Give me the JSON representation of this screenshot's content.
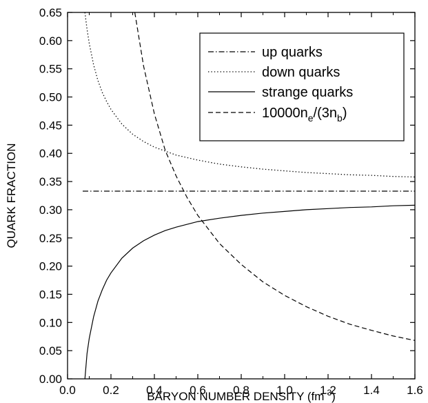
{
  "chart_data": {
    "type": "line",
    "xlabel_main": "BARYON NUMBER DENSITY (fm",
    "xlabel_sup": "-3",
    "xlabel_end": ")",
    "ylabel": "QUARK FRACTION",
    "xlim": [
      0.0,
      1.6
    ],
    "ylim": [
      0.0,
      0.65
    ],
    "xticks": [
      "0.0",
      "0.2",
      "0.4",
      "0.6",
      "0.8",
      "1.0",
      "1.2",
      "1.4",
      "1.6"
    ],
    "yticks": [
      "0.00",
      "0.05",
      "0.10",
      "0.15",
      "0.20",
      "0.25",
      "0.30",
      "0.35",
      "0.40",
      "0.45",
      "0.50",
      "0.55",
      "0.60",
      "0.65"
    ],
    "grid": false,
    "legend_position": "top-right",
    "series": [
      {
        "name": "up quarks",
        "style": "dash-dot",
        "x": [
          0.07,
          0.2,
          0.4,
          0.6,
          0.8,
          1.0,
          1.2,
          1.4,
          1.6
        ],
        "y": [
          0.333,
          0.333,
          0.333,
          0.333,
          0.333,
          0.333,
          0.333,
          0.333,
          0.333
        ]
      },
      {
        "name": "down quarks",
        "style": "dotted",
        "x": [
          0.08,
          0.09,
          0.1,
          0.12,
          0.14,
          0.16,
          0.18,
          0.2,
          0.25,
          0.3,
          0.35,
          0.4,
          0.45,
          0.5,
          0.6,
          0.7,
          0.8,
          0.9,
          1.0,
          1.1,
          1.2,
          1.3,
          1.4,
          1.5,
          1.6
        ],
        "y": [
          0.65,
          0.62,
          0.595,
          0.557,
          0.529,
          0.508,
          0.492,
          0.478,
          0.452,
          0.434,
          0.421,
          0.411,
          0.404,
          0.397,
          0.388,
          0.381,
          0.376,
          0.372,
          0.369,
          0.366,
          0.364,
          0.362,
          0.361,
          0.359,
          0.358
        ]
      },
      {
        "name": "strange quarks",
        "style": "solid",
        "x": [
          0.08,
          0.09,
          0.1,
          0.12,
          0.14,
          0.16,
          0.18,
          0.2,
          0.25,
          0.3,
          0.35,
          0.4,
          0.45,
          0.5,
          0.6,
          0.7,
          0.8,
          0.9,
          1.0,
          1.1,
          1.2,
          1.3,
          1.4,
          1.5,
          1.6
        ],
        "y": [
          0.0,
          0.045,
          0.072,
          0.11,
          0.138,
          0.158,
          0.175,
          0.188,
          0.214,
          0.232,
          0.245,
          0.255,
          0.263,
          0.269,
          0.279,
          0.285,
          0.29,
          0.294,
          0.297,
          0.3,
          0.302,
          0.304,
          0.305,
          0.307,
          0.308
        ]
      },
      {
        "name": "10000n",
        "name_sub1": "e",
        "name_mid": "/(3n",
        "name_sub2": "b",
        "name_end": ")",
        "style": "dashed",
        "x": [
          0.31,
          0.35,
          0.4,
          0.45,
          0.5,
          0.55,
          0.6,
          0.7,
          0.8,
          0.9,
          1.0,
          1.1,
          1.2,
          1.3,
          1.4,
          1.5,
          1.6
        ],
        "y": [
          0.65,
          0.555,
          0.47,
          0.405,
          0.36,
          0.322,
          0.29,
          0.24,
          0.203,
          0.172,
          0.148,
          0.128,
          0.111,
          0.097,
          0.086,
          0.076,
          0.068
        ]
      }
    ]
  }
}
